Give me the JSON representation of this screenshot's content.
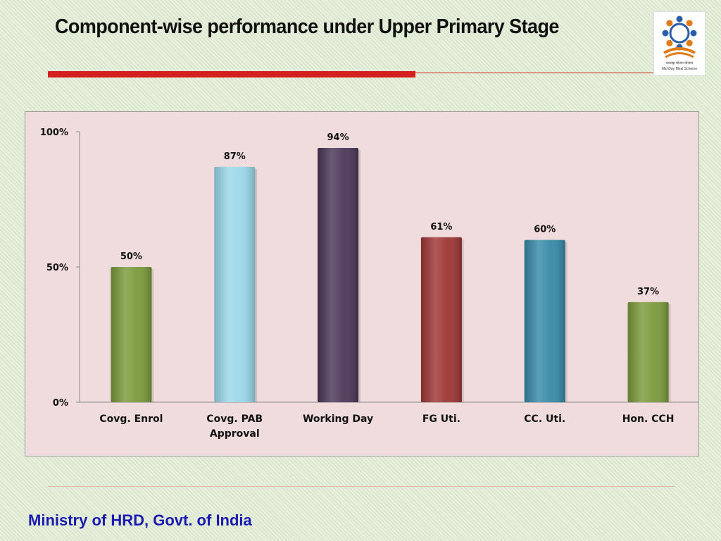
{
  "slide": {
    "title": "Component-wise performance under Upper Primary Stage",
    "footer": "Ministry of HRD, Govt. of India",
    "logo_caption_1": "मध्याह्न भोजन योजना",
    "logo_caption_2": "Mid Day Meal Scheme"
  },
  "chart_data": {
    "type": "bar",
    "categories": [
      "Covg. Enrol",
      "Covg. PAB Approval",
      "Working Day",
      "FG Uti.",
      "CC. Uti.",
      "Hon. CCH"
    ],
    "category_lines": [
      [
        "Covg. Enrol"
      ],
      [
        "Covg. PAB",
        "Approval"
      ],
      [
        "Working Day"
      ],
      [
        "FG Uti."
      ],
      [
        "CC. Uti."
      ],
      [
        "Hon. CCH"
      ]
    ],
    "values": [
      50,
      87,
      94,
      61,
      60,
      37
    ],
    "data_labels": [
      "50%",
      "87%",
      "94%",
      "61%",
      "60%",
      "37%"
    ],
    "colors": [
      "#7a9a3a",
      "#9ad8ea",
      "#4a3658",
      "#9e3535",
      "#3689a8",
      "#7a9a3a"
    ],
    "yticks": [
      0,
      50,
      100
    ],
    "ytick_labels": [
      "0%",
      "50%",
      "100%"
    ],
    "ylim": [
      0,
      100
    ],
    "title": "",
    "xlabel": "",
    "ylabel": "",
    "grid": false,
    "legend": "none",
    "background": "#f0dcdc"
  }
}
